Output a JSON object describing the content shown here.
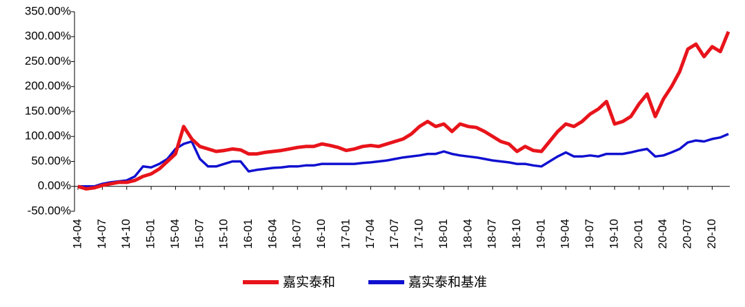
{
  "chart_data": {
    "type": "line",
    "categories": [
      "14-04",
      null,
      null,
      "14-07",
      null,
      null,
      "14-10",
      null,
      null,
      "15-01",
      null,
      null,
      "15-04",
      null,
      null,
      "15-07",
      null,
      null,
      "15-10",
      null,
      null,
      "16-01",
      null,
      null,
      "16-04",
      null,
      null,
      "16-07",
      null,
      null,
      "16-10",
      null,
      null,
      "17-01",
      null,
      null,
      "17-04",
      null,
      null,
      "17-07",
      null,
      null,
      "17-10",
      null,
      null,
      "18-01",
      null,
      null,
      "18-04",
      null,
      null,
      "18-07",
      null,
      null,
      "18-10",
      null,
      null,
      "19-01",
      null,
      null,
      "19-04",
      null,
      null,
      "19-07",
      null,
      null,
      "19-10",
      null,
      null,
      "20-01",
      null,
      null,
      "20-04",
      null,
      null,
      "20-07",
      null,
      null,
      "20-10",
      null,
      null
    ],
    "series": [
      {
        "name": "嘉实泰和",
        "color": "#e8141b",
        "values": [
          0,
          -5,
          -3,
          2,
          5,
          8,
          8,
          12,
          20,
          25,
          35,
          50,
          65,
          120,
          95,
          80,
          75,
          70,
          72,
          75,
          73,
          65,
          65,
          68,
          70,
          72,
          75,
          78,
          80,
          80,
          85,
          82,
          78,
          72,
          75,
          80,
          82,
          80,
          85,
          90,
          95,
          105,
          120,
          130,
          120,
          125,
          110,
          125,
          120,
          118,
          110,
          100,
          90,
          85,
          70,
          80,
          72,
          70,
          90,
          110,
          125,
          120,
          130,
          145,
          155,
          170,
          125,
          130,
          140,
          165,
          185,
          140,
          175,
          200,
          230,
          275,
          285,
          260,
          280,
          270,
          310
        ]
      },
      {
        "name": "嘉实泰和基准",
        "color": "#1010d0",
        "values": [
          0,
          0,
          0,
          5,
          8,
          10,
          12,
          20,
          40,
          38,
          45,
          55,
          75,
          85,
          90,
          55,
          40,
          40,
          45,
          50,
          50,
          30,
          33,
          35,
          37,
          38,
          40,
          40,
          42,
          42,
          45,
          45,
          45,
          45,
          45,
          47,
          48,
          50,
          52,
          55,
          58,
          60,
          62,
          65,
          65,
          70,
          65,
          62,
          60,
          58,
          55,
          52,
          50,
          48,
          45,
          45,
          42,
          40,
          50,
          60,
          68,
          60,
          60,
          62,
          60,
          65,
          65,
          65,
          68,
          72,
          75,
          60,
          62,
          68,
          75,
          88,
          92,
          90,
          95,
          98,
          105
        ]
      }
    ],
    "ylim": [
      -50,
      350
    ],
    "yticks": [
      {
        "value": -50,
        "label": "-50.00%"
      },
      {
        "value": 0,
        "label": "0.00%"
      },
      {
        "value": 50,
        "label": "50.00%"
      },
      {
        "value": 100,
        "label": "100.00%"
      },
      {
        "value": 150,
        "label": "150.00%"
      },
      {
        "value": 200,
        "label": "200.00%"
      },
      {
        "value": 250,
        "label": "250.00%"
      },
      {
        "value": 300,
        "label": "300.00%"
      },
      {
        "value": 350,
        "label": "350.00%"
      }
    ],
    "legend": "bottom"
  }
}
